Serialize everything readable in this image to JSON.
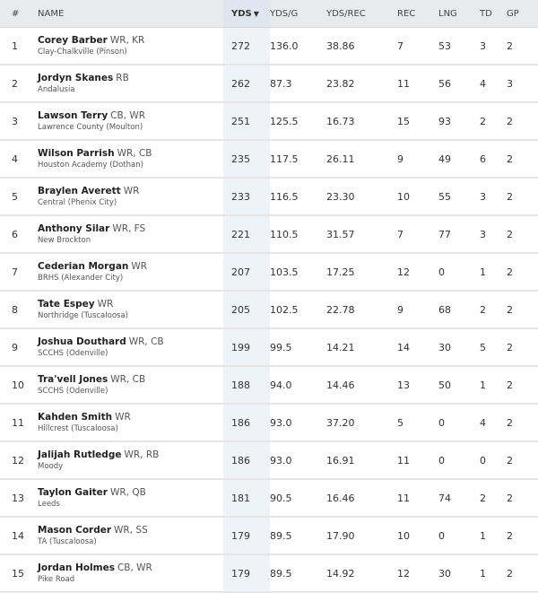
{
  "columns": {
    "rank": "#",
    "name": "NAME",
    "yds": "YDS",
    "yds_sort_indicator": "▼",
    "yds_per_game": "YDS/G",
    "yds_per_rec": "YDS/REC",
    "rec": "REC",
    "lng": "LNG",
    "td": "TD",
    "gp": "GP"
  },
  "rows": [
    {
      "rank": "1",
      "name": "Corey Barber",
      "pos": "WR, KR",
      "school": "Clay-Chalkville (Pinson)",
      "yds": "272",
      "ydsg": "136.0",
      "ydsrec": "38.86",
      "rec": "7",
      "lng": "53",
      "td": "3",
      "gp": "2"
    },
    {
      "rank": "2",
      "name": "Jordyn Skanes",
      "pos": "RB",
      "school": "Andalusia",
      "yds": "262",
      "ydsg": "87.3",
      "ydsrec": "23.82",
      "rec": "11",
      "lng": "56",
      "td": "4",
      "gp": "3"
    },
    {
      "rank": "3",
      "name": "Lawson Terry",
      "pos": "CB, WR",
      "school": "Lawrence County (Moulton)",
      "yds": "251",
      "ydsg": "125.5",
      "ydsrec": "16.73",
      "rec": "15",
      "lng": "93",
      "td": "2",
      "gp": "2"
    },
    {
      "rank": "4",
      "name": "Wilson Parrish",
      "pos": "WR, CB",
      "school": "Houston Academy (Dothan)",
      "yds": "235",
      "ydsg": "117.5",
      "ydsrec": "26.11",
      "rec": "9",
      "lng": "49",
      "td": "6",
      "gp": "2"
    },
    {
      "rank": "5",
      "name": "Braylen Averett",
      "pos": "WR",
      "school": "Central (Phenix City)",
      "yds": "233",
      "ydsg": "116.5",
      "ydsrec": "23.30",
      "rec": "10",
      "lng": "55",
      "td": "3",
      "gp": "2"
    },
    {
      "rank": "6",
      "name": "Anthony Silar",
      "pos": "WR, FS",
      "school": "New Brockton",
      "yds": "221",
      "ydsg": "110.5",
      "ydsrec": "31.57",
      "rec": "7",
      "lng": "77",
      "td": "3",
      "gp": "2"
    },
    {
      "rank": "7",
      "name": "Cederian Morgan",
      "pos": "WR",
      "school": "BRHS (Alexander City)",
      "yds": "207",
      "ydsg": "103.5",
      "ydsrec": "17.25",
      "rec": "12",
      "lng": "0",
      "td": "1",
      "gp": "2"
    },
    {
      "rank": "8",
      "name": "Tate Espey",
      "pos": "WR",
      "school": "Northridge (Tuscaloosa)",
      "yds": "205",
      "ydsg": "102.5",
      "ydsrec": "22.78",
      "rec": "9",
      "lng": "68",
      "td": "2",
      "gp": "2"
    },
    {
      "rank": "9",
      "name": "Joshua Douthard",
      "pos": "WR, CB",
      "school": "SCCHS (Odenville)",
      "yds": "199",
      "ydsg": "99.5",
      "ydsrec": "14.21",
      "rec": "14",
      "lng": "30",
      "td": "5",
      "gp": "2"
    },
    {
      "rank": "10",
      "name": "Tra'vell Jones",
      "pos": "WR, CB",
      "school": "SCCHS (Odenville)",
      "yds": "188",
      "ydsg": "94.0",
      "ydsrec": "14.46",
      "rec": "13",
      "lng": "50",
      "td": "1",
      "gp": "2"
    },
    {
      "rank": "11",
      "name": "Kahden Smith",
      "pos": "WR",
      "school": "Hillcrest (Tuscaloosa)",
      "yds": "186",
      "ydsg": "93.0",
      "ydsrec": "37.20",
      "rec": "5",
      "lng": "0",
      "td": "4",
      "gp": "2"
    },
    {
      "rank": "12",
      "name": "Jalijah Rutledge",
      "pos": "WR, RB",
      "school": "Moody",
      "yds": "186",
      "ydsg": "93.0",
      "ydsrec": "16.91",
      "rec": "11",
      "lng": "0",
      "td": "0",
      "gp": "2"
    },
    {
      "rank": "13",
      "name": "Taylon Gaiter",
      "pos": "WR, QB",
      "school": "Leeds",
      "yds": "181",
      "ydsg": "90.5",
      "ydsrec": "16.46",
      "rec": "11",
      "lng": "74",
      "td": "2",
      "gp": "2"
    },
    {
      "rank": "14",
      "name": "Mason Corder",
      "pos": "WR, SS",
      "school": "TA (Tuscaloosa)",
      "yds": "179",
      "ydsg": "89.5",
      "ydsrec": "17.90",
      "rec": "10",
      "lng": "0",
      "td": "1",
      "gp": "2"
    },
    {
      "rank": "15",
      "name": "Jordan Holmes",
      "pos": "CB, WR",
      "school": "Pike Road",
      "yds": "179",
      "ydsg": "89.5",
      "ydsrec": "14.92",
      "rec": "12",
      "lng": "30",
      "td": "1",
      "gp": "2"
    }
  ],
  "colors": {
    "header_bg": "#e9eaec",
    "sorted_header_bg": "#dfe6f0",
    "sorted_column_bg": "#eef3fa",
    "row_divider": "#e6e6e6"
  }
}
